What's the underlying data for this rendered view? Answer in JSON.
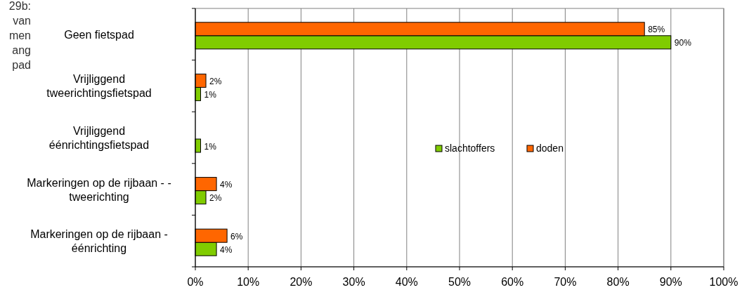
{
  "chart_data": {
    "type": "bar",
    "orientation": "horizontal",
    "categories": [
      "Geen fietspad",
      "Vrijliggend tweerichtingsfietspad",
      "Vrijliggend éénrichtingsfietspad",
      "Markeringen op de rijbaan - - tweerichting",
      "Markeringen op de rijbaan - éénrichting"
    ],
    "series": [
      {
        "name": "slachtoffers",
        "color": "#80cc00",
        "values": [
          90,
          1,
          1,
          2,
          4
        ],
        "value_labels": [
          "90%",
          "1%",
          "1%",
          "2%",
          "4%"
        ]
      },
      {
        "name": "doden",
        "color": "#ff6600",
        "values": [
          85,
          2,
          null,
          4,
          6
        ],
        "value_labels": [
          "85%",
          "2%",
          null,
          "4%",
          "6%"
        ]
      }
    ],
    "xlim": [
      0,
      100
    ],
    "xticks": [
      {
        "value": 0,
        "label": "0%"
      },
      {
        "value": 10,
        "label": "10%"
      },
      {
        "value": 20,
        "label": "20%"
      },
      {
        "value": 30,
        "label": "30%"
      },
      {
        "value": 40,
        "label": "40%"
      },
      {
        "value": 50,
        "label": "50%"
      },
      {
        "value": 60,
        "label": "60%"
      },
      {
        "value": 70,
        "label": "70%"
      },
      {
        "value": 80,
        "label": "80%"
      },
      {
        "value": 90,
        "label": "90%"
      },
      {
        "value": 100,
        "label": "100%"
      }
    ],
    "grid": "x",
    "legend": "right",
    "annotations": [
      "29b:",
      "van",
      "men",
      "ang",
      "pad"
    ]
  }
}
